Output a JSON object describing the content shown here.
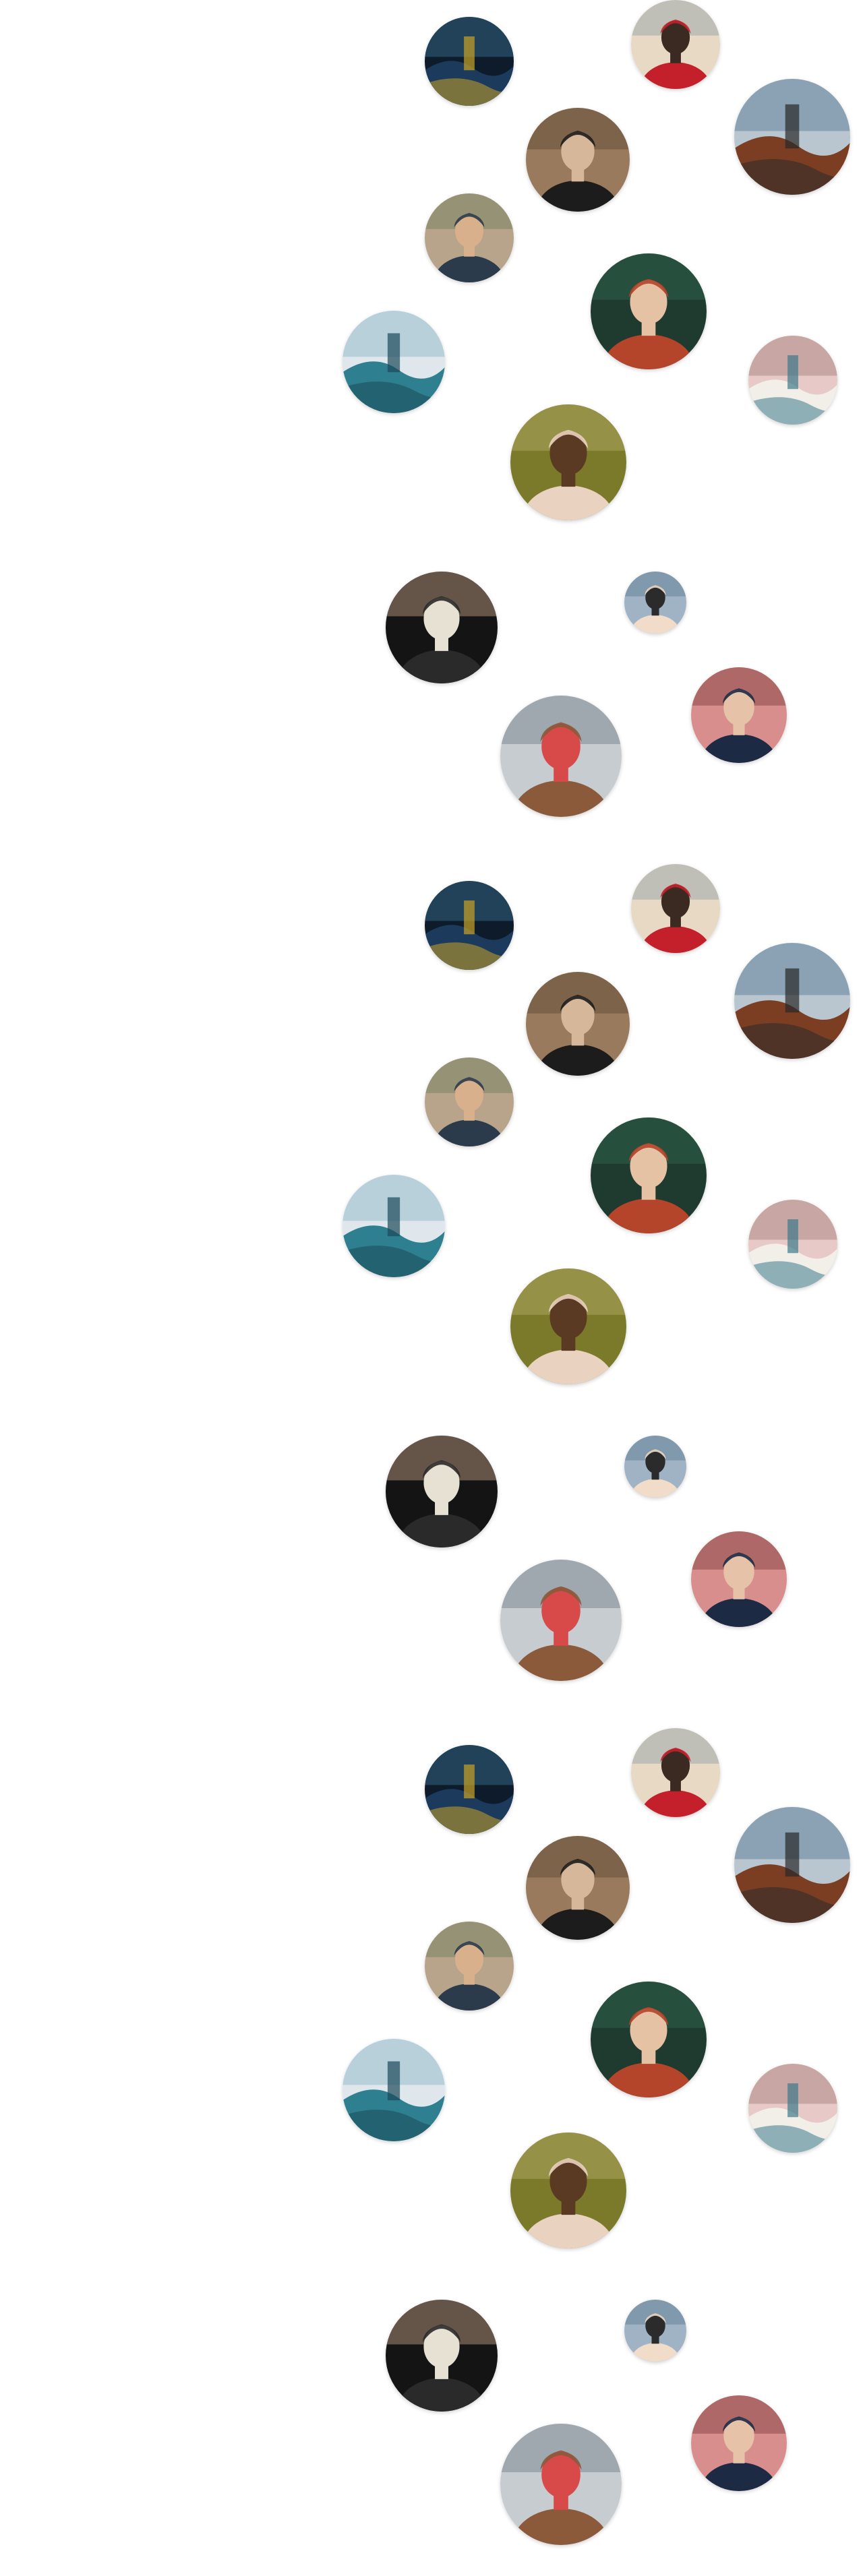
{
  "page": {
    "title": "",
    "background": "#ffffff"
  },
  "avatars": [
    {
      "subject": "pagoda-at-night",
      "palette": [
        "#0d1b2a",
        "#1b3a5c",
        "#c9a227",
        "#2e5d7a"
      ]
    },
    {
      "subject": "man-red-jacket-city",
      "palette": [
        "#e8d9c5",
        "#c4202b",
        "#3b2a22",
        "#8f9fa8"
      ]
    },
    {
      "subject": "man-black-hat",
      "palette": [
        "#9a7a5c",
        "#1c1c1c",
        "#d7b79a",
        "#5a4636"
      ]
    },
    {
      "subject": "woman-hat-bridge",
      "palette": [
        "#b9c6cf",
        "#7b3e22",
        "#2a2a2a",
        "#6a8aa0"
      ]
    },
    {
      "subject": "man-smiling-outdoors",
      "palette": [
        "#b7a48a",
        "#2b3b4b",
        "#d8b08c",
        "#6f7d5a"
      ]
    },
    {
      "subject": "red-haired-woman-green-dress",
      "palette": [
        "#1f3a2e",
        "#b5452a",
        "#e6c2a4",
        "#2f6b4f"
      ]
    },
    {
      "subject": "waterfall-landscape",
      "palette": [
        "#dfe7ec",
        "#2e7f8f",
        "#1b4a5a",
        "#9fc2cf"
      ]
    },
    {
      "subject": "taj-mahal-reflection",
      "palette": [
        "#e7c9c8",
        "#f2efe9",
        "#3d7a8a",
        "#b38f8a"
      ]
    },
    {
      "subject": "woman-portrait-plants",
      "palette": [
        "#7a7a2a",
        "#e9d3c0",
        "#5b3a24",
        "#b5b06b"
      ]
    },
    {
      "subject": "man-night-lights",
      "palette": [
        "#141414",
        "#2a2a2a",
        "#e7e1d4",
        "#c7a58a"
      ]
    },
    {
      "subject": "man-close-portrait",
      "palette": [
        "#9fb3c4",
        "#f0dcc8",
        "#2b2b2b",
        "#5e7a92"
      ]
    },
    {
      "subject": "woman-city-street",
      "palette": [
        "#c7ccd1",
        "#8a5a3a",
        "#d84a4a",
        "#6e7a84"
      ]
    },
    {
      "subject": "man-pink-wall",
      "palette": [
        "#d98e8e",
        "#1c2a44",
        "#e6c2a8",
        "#7a3a3a"
      ]
    }
  ]
}
